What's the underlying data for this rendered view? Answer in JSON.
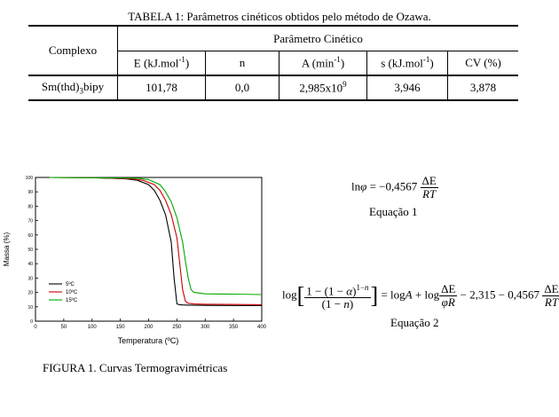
{
  "table": {
    "caption": "TABELA 1: Parâmetros cinéticos obtidos pelo método de Ozawa.",
    "row_header": "Complexo",
    "group_header": "Parâmetro Cinético",
    "columns": [
      "E (kJ.mol-1)",
      "n",
      "A (min-1)",
      "s (kJ.mol-1)",
      "CV (%)"
    ],
    "row": {
      "complex": "Sm(thd)3bipy",
      "values": [
        "101,78",
        "0,0",
        "2,985x109",
        "3,946",
        "3,878"
      ]
    }
  },
  "equation1": {
    "label": "Equação 1",
    "lhs": "ln φ",
    "coef": "−0,4567",
    "num": "ΔE",
    "den": "RT"
  },
  "equation2": {
    "label": "Equação 2",
    "frac_num": "1 − (1 − α)1−n",
    "frac_den": "(1 − n)",
    "rhs1": "= log A + log",
    "frac2_num": "ΔE",
    "frac2_den": "φR",
    "rhs2": "− 2,315 − 0,4567",
    "frac3_num": "ΔE",
    "frac3_den": "RT"
  },
  "figure_caption": "FIGURA 1. Curvas Termogravimétricas",
  "chart_data": {
    "type": "line",
    "xlabel": "Temperatura (ºC)",
    "ylabel": "Massa (%)",
    "xlim": [
      0,
      400
    ],
    "ylim": [
      0,
      100
    ],
    "xticks": [
      0,
      50,
      100,
      150,
      200,
      250,
      300,
      350,
      400
    ],
    "yticks": [
      0,
      10,
      20,
      30,
      40,
      50,
      60,
      70,
      80,
      90,
      100
    ],
    "legend_position": "bottom-left",
    "series": [
      {
        "name": "5ºC",
        "color": "#000000",
        "x": [
          25,
          100,
          160,
          180,
          200,
          210,
          220,
          230,
          240,
          245,
          250,
          255,
          260,
          270,
          300,
          400
        ],
        "y": [
          100,
          99.8,
          99,
          98,
          95,
          91,
          84,
          74,
          55,
          30,
          12,
          11.5,
          11.3,
          11.2,
          11,
          10.8
        ]
      },
      {
        "name": "10ºC",
        "color": "#cc0000",
        "x": [
          25,
          100,
          170,
          190,
          210,
          220,
          230,
          240,
          250,
          255,
          260,
          265,
          270,
          280,
          300,
          400
        ],
        "y": [
          100,
          99.8,
          99,
          98,
          95,
          91,
          84,
          74,
          58,
          40,
          22,
          14,
          12.5,
          12,
          11.8,
          11.5
        ]
      },
      {
        "name": "15ºC",
        "color": "#00aa00",
        "x": [
          25,
          100,
          180,
          200,
          220,
          230,
          240,
          250,
          260,
          265,
          270,
          275,
          280,
          300,
          350,
          400
        ],
        "y": [
          100,
          99.8,
          99.5,
          98.5,
          95,
          90,
          83,
          72,
          55,
          42,
          30,
          22,
          20,
          19,
          18.8,
          18.5
        ]
      }
    ]
  }
}
